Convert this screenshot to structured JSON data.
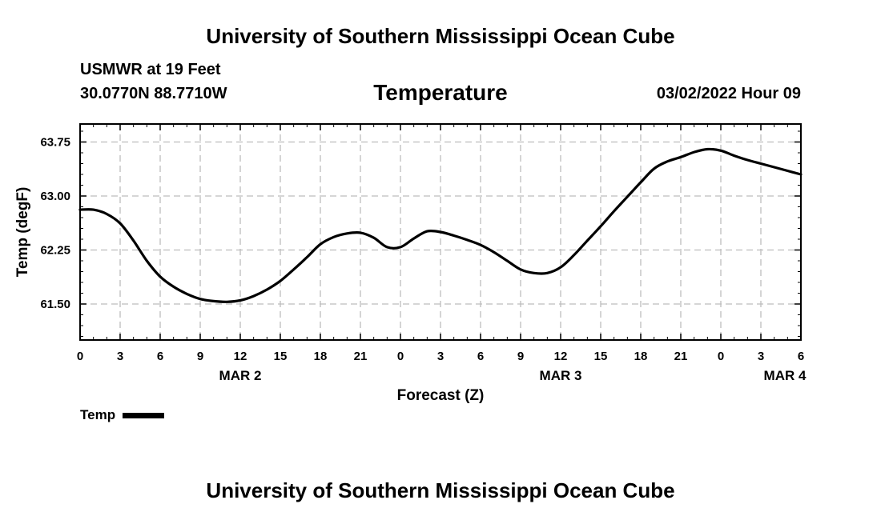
{
  "header": {
    "org_title": "University of Southern Mississippi Ocean Cube",
    "station": "USMWR at 19 Feet",
    "coords": "30.0770N  88.7710W",
    "plot_title": "Temperature",
    "timestamp": "03/02/2022 Hour 09",
    "footer_title": "University of Southern Mississippi Ocean Cube"
  },
  "legend": {
    "label": "Temp"
  },
  "chart_data": {
    "type": "line",
    "title": "Temperature",
    "xlabel": "Forecast (Z)",
    "ylabel": "Temp (degF)",
    "xlim": [
      0,
      54
    ],
    "ylim": [
      61.0,
      64.0
    ],
    "yticks": [
      61.5,
      62.25,
      63.0,
      63.75
    ],
    "ytick_labels": [
      "61.50",
      "62.25",
      "63.00",
      "63.75"
    ],
    "xticks": [
      0,
      3,
      6,
      9,
      12,
      15,
      18,
      21,
      24,
      27,
      30,
      33,
      36,
      39,
      42,
      45,
      48,
      51,
      54
    ],
    "xtick_labels": [
      "0",
      "3",
      "6",
      "9",
      "12",
      "15",
      "18",
      "21",
      "0",
      "3",
      "6",
      "9",
      "12",
      "15",
      "18",
      "21",
      "0",
      "3",
      "6"
    ],
    "date_labels": [
      {
        "x": 12,
        "label": "MAR 2"
      },
      {
        "x": 36,
        "label": "MAR 3"
      },
      {
        "x": 52.8,
        "label": "MAR 4"
      }
    ],
    "grid": true,
    "series": [
      {
        "name": "Temp",
        "x": [
          0,
          1,
          2,
          3,
          4,
          5,
          6,
          7,
          8,
          9,
          10,
          11,
          12,
          13,
          14,
          15,
          16,
          17,
          18,
          19,
          20,
          21,
          22,
          23,
          24,
          25,
          26,
          27,
          28,
          29,
          30,
          31,
          32,
          33,
          34,
          35,
          36,
          37,
          38,
          39,
          40,
          41,
          42,
          43,
          44,
          45,
          46,
          47,
          48,
          49,
          50,
          51,
          52,
          53,
          54
        ],
        "values": [
          62.81,
          62.81,
          62.75,
          62.62,
          62.38,
          62.1,
          61.88,
          61.74,
          61.64,
          61.57,
          61.54,
          61.53,
          61.55,
          61.61,
          61.7,
          61.82,
          61.98,
          62.15,
          62.33,
          62.43,
          62.48,
          62.49,
          62.42,
          62.29,
          62.29,
          62.41,
          62.51,
          62.5,
          62.45,
          62.39,
          62.32,
          62.22,
          62.1,
          61.98,
          61.93,
          61.93,
          62.01,
          62.18,
          62.38,
          62.58,
          62.79,
          62.99,
          63.19,
          63.38,
          63.48,
          63.54,
          63.61,
          63.65,
          63.63,
          63.56,
          63.5,
          63.45,
          63.4,
          63.35,
          63.3
        ]
      }
    ]
  }
}
